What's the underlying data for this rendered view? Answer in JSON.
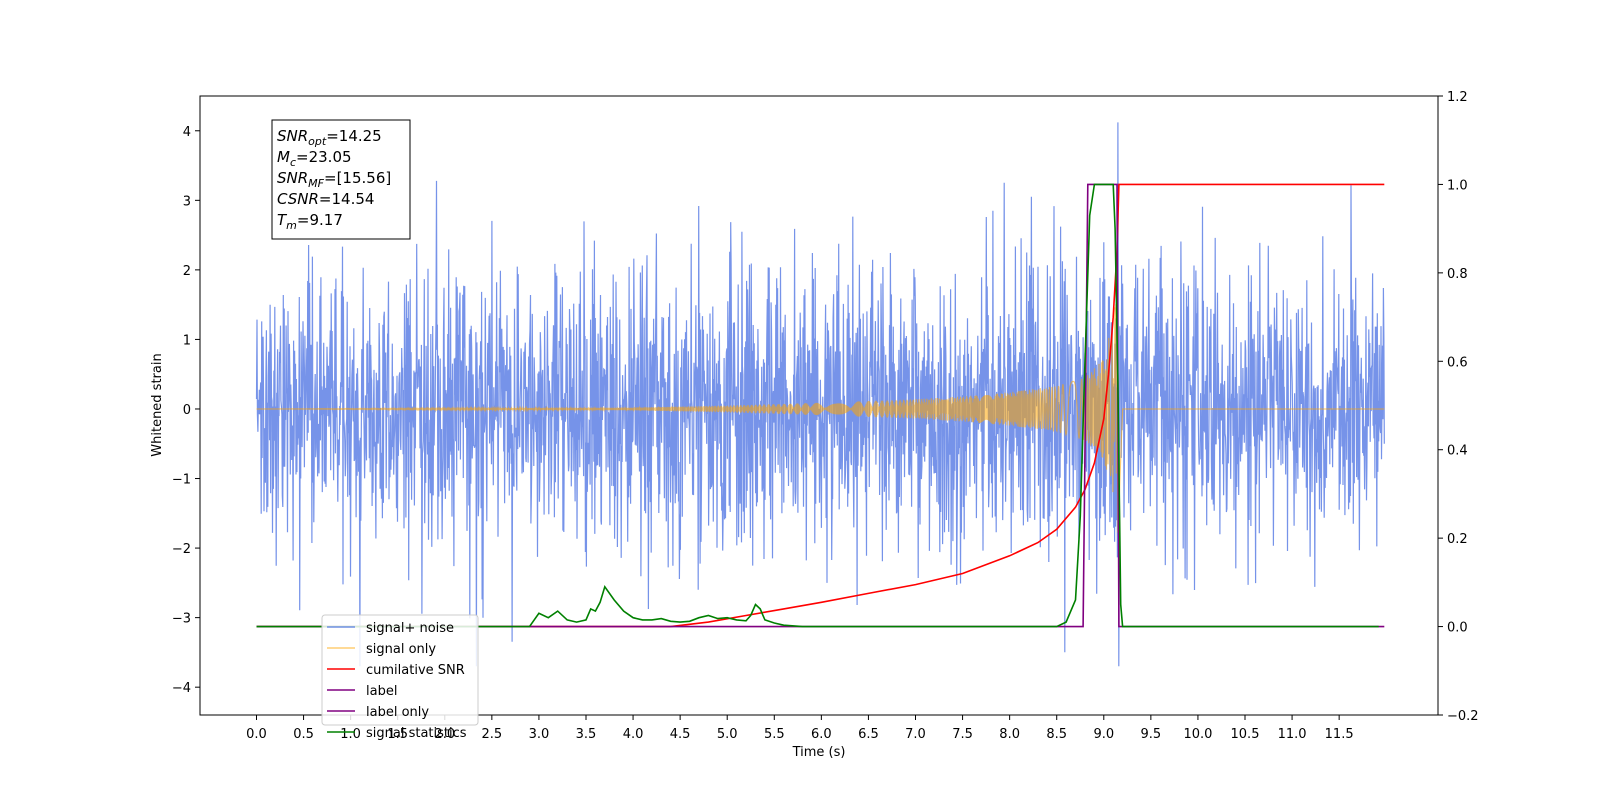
{
  "chart_data": {
    "type": "line",
    "title": "",
    "xlabel": "Time (s)",
    "ylabel": "Whitened strain",
    "ylabel_right": "",
    "xlim": [
      -0.6,
      12.55
    ],
    "ylim": [
      -4.4,
      4.5
    ],
    "ylim_right": [
      -0.2,
      1.2
    ],
    "x_ticks": [
      0.0,
      0.5,
      1.0,
      1.5,
      2.0,
      2.5,
      3.0,
      3.5,
      4.0,
      4.5,
      5.0,
      5.5,
      6.0,
      6.5,
      7.0,
      7.5,
      8.0,
      8.5,
      9.0,
      9.5,
      10.0,
      10.5,
      11.0,
      11.5
    ],
    "x_tick_labels": [
      "0.0",
      "0.5",
      "1.0",
      "1.5",
      "2.0",
      "2.5",
      "3.0",
      "3.5",
      "4.0",
      "4.5",
      "5.0",
      "5.5",
      "6.0",
      "6.5",
      "7.0",
      "7.5",
      "8.0",
      "8.5",
      "9.0",
      "9.5",
      "10.0",
      "10.5",
      "11.0",
      "11.5"
    ],
    "y_ticks": [
      -4,
      -3,
      -2,
      -1,
      0,
      1,
      2,
      3,
      4
    ],
    "y_tick_labels": [
      "−4",
      "−3",
      "−2",
      "−1",
      "0",
      "1",
      "2",
      "3",
      "4"
    ],
    "y_right_ticks": [
      -0.2,
      0.0,
      0.2,
      0.4,
      0.6,
      0.8,
      1.0,
      1.2
    ],
    "y_right_tick_labels": [
      "−0.2",
      "0.0",
      "0.2",
      "0.4",
      "0.6",
      "0.8",
      "1.0",
      "1.2"
    ],
    "grid": false,
    "legend_position": "lower-left",
    "annotation": [
      {
        "sym": "SNR",
        "sub": "opt",
        "val": "=14.25"
      },
      {
        "sym": "M",
        "sub": "c",
        "val": "=23.05"
      },
      {
        "sym": "SNR",
        "sub": "MF",
        "val": "=[15.56]"
      },
      {
        "sym": "CSNR",
        "sub": "",
        "val": "=14.54"
      },
      {
        "sym": "T",
        "sub": "m",
        "val": "=9.17"
      }
    ],
    "series": [
      {
        "name": "signal+ noise",
        "axis": "left",
        "color": "#4169e1",
        "opacity": 0.72,
        "description_kind": "noise",
        "x_range": [
          0.0,
          11.98
        ],
        "rms": 1.0,
        "peak_time": 9.15,
        "min_val": -3.95,
        "max_val": 4.12
      },
      {
        "name": "signal only",
        "axis": "left",
        "color": "#ffa500",
        "opacity": 0.55,
        "description_kind": "chirp",
        "x_range": [
          0.0,
          11.98
        ],
        "merger_time": 9.15,
        "envelope_x": [
          0.0,
          4.0,
          5.0,
          6.0,
          7.0,
          7.5,
          8.0,
          8.5,
          8.8,
          9.0,
          9.1,
          9.15,
          9.2
        ],
        "envelope_y": [
          0.0,
          0.02,
          0.05,
          0.09,
          0.14,
          0.18,
          0.24,
          0.33,
          0.45,
          0.72,
          1.3,
          1.8,
          0.0
        ]
      },
      {
        "name": "cumilative SNR",
        "axis": "right",
        "color": "#ff0000",
        "x": [
          0.0,
          4.4,
          4.8,
          5.2,
          5.6,
          6.0,
          6.5,
          7.0,
          7.5,
          8.0,
          8.3,
          8.5,
          8.7,
          8.8,
          8.9,
          9.0,
          9.05,
          9.1,
          9.14,
          9.16,
          11.98
        ],
        "y": [
          0.0,
          0.0,
          0.01,
          0.025,
          0.04,
          0.055,
          0.075,
          0.095,
          0.12,
          0.16,
          0.19,
          0.22,
          0.27,
          0.31,
          0.37,
          0.47,
          0.57,
          0.7,
          0.85,
          1.0,
          1.0
        ]
      },
      {
        "name": "label",
        "axis": "right",
        "color": "#800080",
        "x": [
          0.0,
          8.78,
          8.83,
          9.14,
          9.16,
          11.98
        ],
        "y": [
          0.0,
          0.0,
          1.0,
          1.0,
          0.0,
          0.0
        ]
      },
      {
        "name": "label only",
        "axis": "right",
        "color": "#800080",
        "legend_only": true
      },
      {
        "name": "signal statistics",
        "axis": "right",
        "color": "#008000",
        "x": [
          0.0,
          2.9,
          3.0,
          3.1,
          3.2,
          3.3,
          3.4,
          3.5,
          3.55,
          3.6,
          3.65,
          3.7,
          3.8,
          3.9,
          4.0,
          4.1,
          4.2,
          4.3,
          4.4,
          4.5,
          4.6,
          4.7,
          4.8,
          4.9,
          5.0,
          5.1,
          5.2,
          5.25,
          5.3,
          5.35,
          5.4,
          5.5,
          5.6,
          5.8,
          8.5,
          8.6,
          8.7,
          8.75,
          8.8,
          8.85,
          8.9,
          9.1,
          9.12,
          9.15,
          9.18,
          9.2,
          11.92
        ],
        "y": [
          0.0,
          0.0,
          0.03,
          0.02,
          0.035,
          0.015,
          0.01,
          0.015,
          0.04,
          0.035,
          0.055,
          0.09,
          0.06,
          0.035,
          0.02,
          0.015,
          0.015,
          0.018,
          0.012,
          0.01,
          0.012,
          0.02,
          0.025,
          0.018,
          0.02,
          0.015,
          0.013,
          0.025,
          0.05,
          0.04,
          0.015,
          0.008,
          0.003,
          0.0,
          0.0,
          0.01,
          0.06,
          0.25,
          0.6,
          0.93,
          1.0,
          1.0,
          0.9,
          0.55,
          0.05,
          0.0,
          0.0
        ]
      }
    ]
  }
}
